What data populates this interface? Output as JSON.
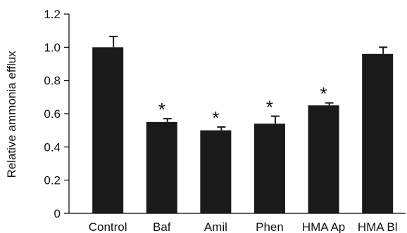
{
  "chart_data": {
    "type": "bar",
    "categories": [
      "Control",
      "Baf",
      "Amil",
      "Phen",
      "HMA Ap",
      "HMA Bl"
    ],
    "values": [
      1.0,
      0.55,
      0.5,
      0.54,
      0.65,
      0.96
    ],
    "errors": [
      0.065,
      0.02,
      0.02,
      0.045,
      0.015,
      0.04
    ],
    "significance": [
      "",
      "*",
      "*",
      "*",
      "*",
      ""
    ],
    "title": "",
    "xlabel": "",
    "ylabel": "Relative ammonia efflux",
    "ylim": [
      0,
      1.2
    ],
    "yticks": [
      0,
      0.2,
      0.4,
      0.6,
      0.8,
      1.0,
      1.2
    ],
    "ytick_labels": [
      "0",
      "0.2",
      "0.4",
      "0.6",
      "0.8",
      "1.0",
      "1.2"
    ],
    "grid": false,
    "bar_color": "#1a1a1a",
    "axis_color": "#000000"
  }
}
